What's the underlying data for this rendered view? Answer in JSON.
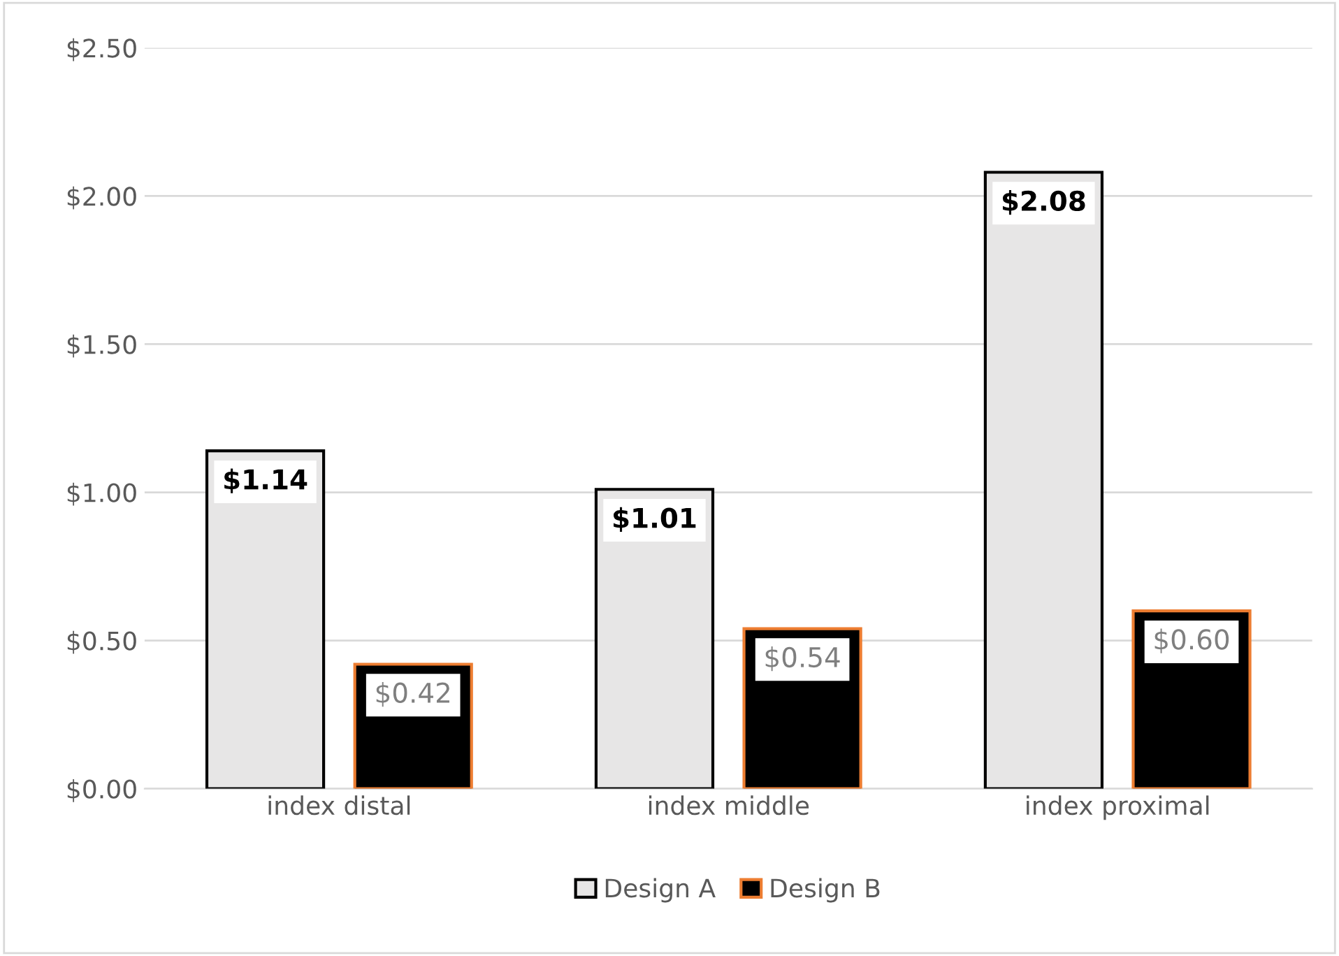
{
  "chart_data": {
    "type": "bar",
    "categories": [
      "index distal",
      "index middle",
      "index proximal"
    ],
    "series": [
      {
        "name": "Design A",
        "color": "#e7e6e6",
        "values": [
          1.14,
          1.01,
          2.08
        ],
        "value_labels": [
          "$1.14",
          "$1.01",
          "$2.08"
        ]
      },
      {
        "name": "Design B",
        "color": "#000000",
        "values": [
          0.42,
          0.54,
          0.6
        ],
        "value_labels": [
          "$0.42",
          "$0.54",
          "$0.60"
        ]
      }
    ],
    "ylim": [
      0,
      2.5
    ],
    "yticks": [
      {
        "value": 0,
        "label": "$0.00"
      },
      {
        "value": 0.5,
        "label": "$0.50"
      },
      {
        "value": 1.0,
        "label": "$1.00"
      },
      {
        "value": 1.5,
        "label": "$1.50"
      },
      {
        "value": 2.0,
        "label": "$2.00"
      },
      {
        "value": 2.5,
        "label": "$2.50"
      }
    ],
    "grid": "y",
    "legend": "bottom"
  }
}
